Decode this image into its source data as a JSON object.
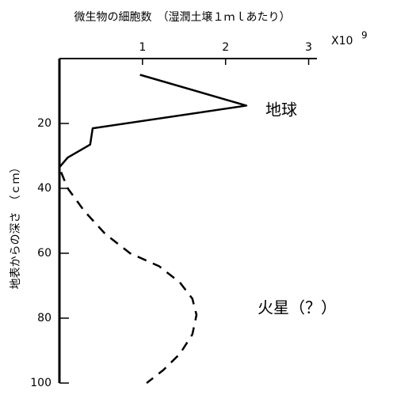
{
  "chart_data": {
    "type": "line",
    "title": "微生物の細胞数　（湿潤土壌１ｍｌあたり）",
    "x_multiplier": "X10",
    "x_exponent": "9",
    "ylabel": "地表からの深さ　（ｃｍ）",
    "xlim": [
      0,
      3.1
    ],
    "xticks": [
      1,
      2,
      3
    ],
    "ylim": [
      0,
      100
    ],
    "yticks": [
      20,
      40,
      60,
      80,
      100
    ],
    "y_inverted": true,
    "series": [
      {
        "name": "地球",
        "color": "#000000",
        "style": "solid",
        "x": [
          0.97,
          2.25,
          0.4,
          0.37,
          0.1,
          0.0
        ],
        "values": [
          5,
          14.5,
          21.5,
          26.5,
          30.5,
          33.5
        ]
      },
      {
        "name": "火星（？）",
        "color": "#000000",
        "style": "dashed",
        "x": [
          0.02,
          0.1,
          0.3,
          0.55,
          0.85,
          1.2,
          1.45,
          1.6,
          1.65,
          1.6,
          1.45,
          1.25,
          1.05
        ],
        "values": [
          35,
          40,
          47,
          54,
          60,
          64,
          69,
          74,
          79,
          85,
          91,
          96,
          100
        ]
      }
    ]
  }
}
